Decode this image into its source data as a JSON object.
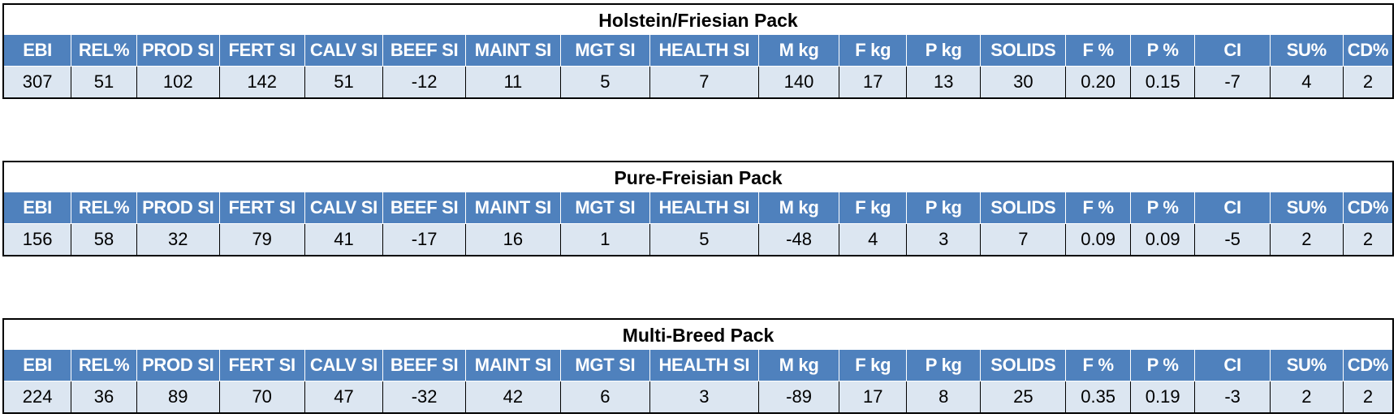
{
  "columns": [
    "EBI",
    "REL%",
    "PROD SI",
    "FERT SI",
    "CALV SI",
    "BEEF SI",
    "MAINT SI",
    "MGT SI",
    "HEALTH SI",
    "M kg",
    "F kg",
    "P kg",
    "SOLIDS",
    "F %",
    "P %",
    "CI",
    "SU%",
    "CD%"
  ],
  "packs": [
    {
      "title": "Holstein/Friesian Pack",
      "values": [
        "307",
        "51",
        "102",
        "142",
        "51",
        "-12",
        "11",
        "5",
        "7",
        "140",
        "17",
        "13",
        "30",
        "0.20",
        "0.15",
        "-7",
        "4",
        "2"
      ]
    },
    {
      "title": "Pure-Freisian Pack",
      "values": [
        "156",
        "58",
        "32",
        "79",
        "41",
        "-17",
        "16",
        "1",
        "5",
        "-48",
        "4",
        "3",
        "7",
        "0.09",
        "0.09",
        "-5",
        "2",
        "2"
      ]
    },
    {
      "title": "Multi-Breed Pack",
      "values": [
        "224",
        "36",
        "89",
        "70",
        "47",
        "-32",
        "42",
        "6",
        "3",
        "-89",
        "17",
        "8",
        "25",
        "0.35",
        "0.19",
        "-3",
        "2",
        "2"
      ]
    }
  ]
}
